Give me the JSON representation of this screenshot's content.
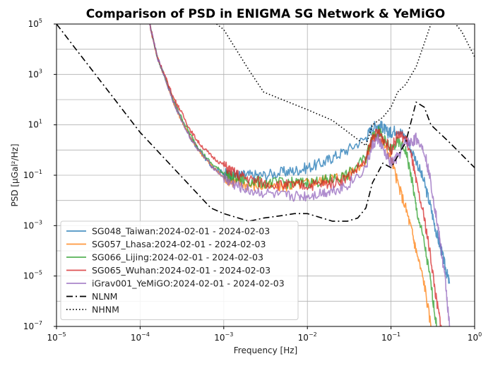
{
  "chart_data": {
    "type": "line",
    "title": "Comparison of PSD in ENIGMA SG Network & YeMiGO",
    "xlabel": "Frequency [Hz]",
    "ylabel": "PSD [μGal²/Hz]",
    "x_scale": "log",
    "y_scale": "log",
    "xlim": [
      1e-05,
      1
    ],
    "ylim": [
      1e-07,
      100000
    ],
    "grid": true,
    "legend_position": "lower-left",
    "x_ticks": [
      {
        "base": "10",
        "exp": "−5"
      },
      {
        "base": "10",
        "exp": "−4"
      },
      {
        "base": "10",
        "exp": "−3"
      },
      {
        "base": "10",
        "exp": "−2"
      },
      {
        "base": "10",
        "exp": "−1"
      },
      {
        "base": "10",
        "exp": "0"
      }
    ],
    "y_ticks": [
      {
        "base": "10",
        "exp": "−7"
      },
      {
        "base": "10",
        "exp": "−5"
      },
      {
        "base": "10",
        "exp": "−3"
      },
      {
        "base": "10",
        "exp": "−1"
      },
      {
        "base": "10",
        "exp": "1"
      },
      {
        "base": "10",
        "exp": "3"
      },
      {
        "base": "10",
        "exp": "5"
      }
    ],
    "series": [
      {
        "name": "SG048_Taiwan:2024-02-01 - 2024-02-03",
        "color": "#1f77b4",
        "style": "solid",
        "x": [
          0.00013,
          0.00016,
          0.0002,
          0.00025,
          0.0003,
          0.0004,
          0.0005,
          0.0007,
          0.001,
          0.0012,
          0.0015,
          0.002,
          0.003,
          0.005,
          0.007,
          0.01,
          0.015,
          0.02,
          0.03,
          0.05,
          0.06,
          0.07,
          0.08,
          0.09,
          0.1,
          0.12,
          0.15,
          0.2,
          0.25,
          0.3,
          0.35,
          0.4,
          0.45,
          0.5
        ],
        "y": [
          100000,
          5000,
          700,
          80,
          20,
          3,
          1,
          0.25,
          0.12,
          0.1,
          0.1,
          0.1,
          0.1,
          0.13,
          0.15,
          0.2,
          0.3,
          0.5,
          1,
          3,
          8,
          10,
          8,
          5,
          5,
          7,
          3,
          0.4,
          0.05,
          0.005,
          0.0005,
          0.0001,
          2e-05,
          5e-06
        ]
      },
      {
        "name": "SG057_Lhasa:2024-02-01 - 2024-02-03",
        "color": "#ff7f0e",
        "style": "solid",
        "x": [
          0.00013,
          0.00016,
          0.0002,
          0.00025,
          0.0003,
          0.0004,
          0.0005,
          0.0007,
          0.001,
          0.0012,
          0.0015,
          0.002,
          0.003,
          0.005,
          0.007,
          0.01,
          0.015,
          0.02,
          0.03,
          0.05,
          0.06,
          0.07,
          0.08,
          0.1,
          0.12,
          0.15,
          0.18,
          0.2,
          0.25,
          0.3
        ],
        "y": [
          100000,
          5000,
          700,
          80,
          20,
          3,
          1,
          0.25,
          0.08,
          0.06,
          0.05,
          0.04,
          0.035,
          0.035,
          0.04,
          0.05,
          0.06,
          0.08,
          0.1,
          0.4,
          3,
          4,
          2,
          0.5,
          0.05,
          0.005,
          0.0005,
          0.0001,
          5e-06,
          1e-07
        ]
      },
      {
        "name": "SG066_Lijing:2024-02-01 - 2024-02-03",
        "color": "#2ca02c",
        "style": "solid",
        "x": [
          0.00013,
          0.00016,
          0.0002,
          0.00025,
          0.0003,
          0.0004,
          0.0005,
          0.0007,
          0.001,
          0.0012,
          0.0015,
          0.002,
          0.003,
          0.005,
          0.007,
          0.01,
          0.015,
          0.02,
          0.03,
          0.05,
          0.06,
          0.07,
          0.08,
          0.1,
          0.12,
          0.15,
          0.18,
          0.2,
          0.25,
          0.3,
          0.35
        ],
        "y": [
          100000,
          5000,
          700,
          90,
          25,
          4,
          1.2,
          0.3,
          0.12,
          0.09,
          0.07,
          0.06,
          0.05,
          0.05,
          0.05,
          0.05,
          0.06,
          0.07,
          0.1,
          0.5,
          4,
          6,
          3,
          1,
          2,
          1,
          0.05,
          0.005,
          0.0002,
          5e-06,
          1e-07
        ]
      },
      {
        "name": "SG065_Wuhan:2024-02-01 - 2024-02-03",
        "color": "#d62728",
        "style": "solid",
        "x": [
          0.00013,
          0.00016,
          0.0002,
          0.00025,
          0.0003,
          0.0004,
          0.0005,
          0.0007,
          0.001,
          0.0012,
          0.0015,
          0.002,
          0.003,
          0.005,
          0.007,
          0.01,
          0.015,
          0.02,
          0.03,
          0.05,
          0.06,
          0.07,
          0.08,
          0.1,
          0.12,
          0.15,
          0.18,
          0.2,
          0.25,
          0.3,
          0.35,
          0.4
        ],
        "y": [
          100000,
          5000,
          800,
          120,
          40,
          6,
          2,
          0.6,
          0.25,
          0.15,
          0.1,
          0.07,
          0.05,
          0.04,
          0.04,
          0.04,
          0.045,
          0.05,
          0.08,
          0.4,
          3,
          5,
          3,
          1,
          4,
          3,
          0.4,
          0.05,
          0.002,
          5e-05,
          1e-06,
          1e-07
        ]
      },
      {
        "name": "iGrav001_YeMiGO:2024-02-01 - 2024-02-03",
        "color": "#9467bd",
        "style": "solid",
        "x": [
          0.00013,
          0.00016,
          0.0002,
          0.00025,
          0.0003,
          0.0004,
          0.0005,
          0.0007,
          0.001,
          0.0012,
          0.0015,
          0.002,
          0.003,
          0.005,
          0.007,
          0.01,
          0.015,
          0.02,
          0.03,
          0.05,
          0.06,
          0.07,
          0.08,
          0.1,
          0.12,
          0.15,
          0.18,
          0.2,
          0.25,
          0.3,
          0.35,
          0.4,
          0.45,
          0.5
        ],
        "y": [
          100000,
          5000,
          700,
          80,
          20,
          3,
          1,
          0.25,
          0.08,
          0.05,
          0.035,
          0.025,
          0.02,
          0.015,
          0.015,
          0.015,
          0.02,
          0.025,
          0.04,
          0.2,
          1.5,
          3,
          1,
          0.3,
          0.5,
          2,
          2,
          3,
          1,
          0.05,
          0.002,
          0.0001,
          5e-06,
          1e-07
        ]
      },
      {
        "name": "NLNM",
        "color": "#000000",
        "style": "dashdot",
        "x": [
          1e-05,
          0.0001,
          0.0007,
          0.001,
          0.002,
          0.003,
          0.005,
          0.007,
          0.01,
          0.015,
          0.02,
          0.03,
          0.04,
          0.05,
          0.06,
          0.08,
          0.1,
          0.15,
          0.2,
          0.25,
          0.3,
          0.5,
          1
        ],
        "y": [
          100000,
          5,
          0.005,
          0.003,
          0.0015,
          0.002,
          0.0025,
          0.003,
          0.003,
          0.002,
          0.0015,
          0.0015,
          0.002,
          0.005,
          0.05,
          0.3,
          0.2,
          2,
          80,
          50,
          10,
          2,
          0.2
        ]
      },
      {
        "name": "NHNM",
        "color": "#000000",
        "style": "dotted",
        "x": [
          0.00082,
          0.001,
          0.002,
          0.003,
          0.005,
          0.01,
          0.02,
          0.05,
          0.06,
          0.08,
          0.1,
          0.12,
          0.15,
          0.2,
          0.3,
          0.5,
          0.7,
          1
        ],
        "y": [
          100000,
          60000,
          1500,
          200,
          100,
          40,
          15,
          1.5,
          10,
          20,
          50,
          200,
          400,
          2000,
          100000,
          200000,
          50000,
          5000
        ]
      }
    ]
  }
}
